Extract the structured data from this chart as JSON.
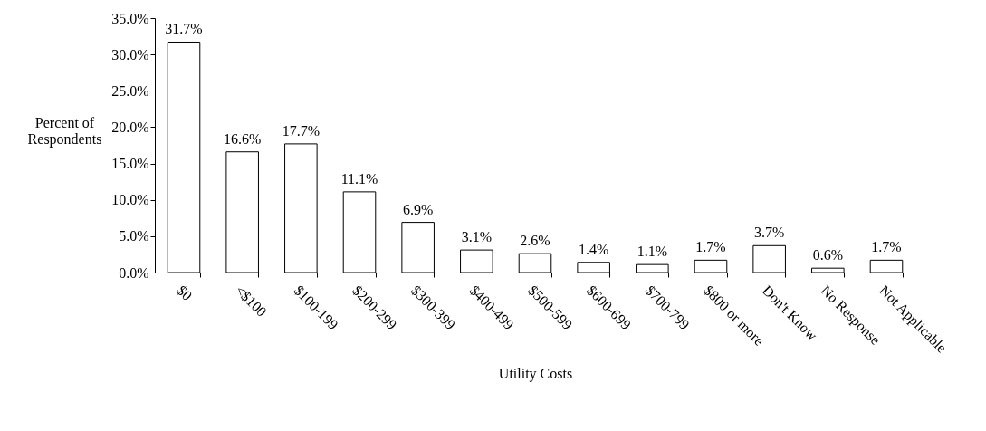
{
  "chart_data": {
    "type": "bar",
    "xlabel": "Utility Costs",
    "ylabel": "Percent of Respondents",
    "categories": [
      "$0",
      "<$100",
      "$100-199",
      "$200-299",
      "$300-399",
      "$400-499",
      "$500-599",
      "$600-699",
      "$700-799",
      "$800 or more",
      "Don't Know",
      "No Response",
      "Not Applicable"
    ],
    "values": [
      31.7,
      16.6,
      17.7,
      11.1,
      6.9,
      3.1,
      2.6,
      1.4,
      1.1,
      1.7,
      3.7,
      0.6,
      1.7
    ],
    "value_labels": [
      "31.7%",
      "16.6%",
      "17.7%",
      "11.1%",
      "6.9%",
      "3.1%",
      "2.6%",
      "1.4%",
      "1.1%",
      "1.7%",
      "3.7%",
      "0.6%",
      "1.7%"
    ],
    "color": "#ffffff",
    "ylim": [
      0,
      35
    ],
    "yticks": [
      {
        "value": 0,
        "label": "0.0%"
      },
      {
        "value": 5,
        "label": "5.0%"
      },
      {
        "value": 10,
        "label": "10.0%"
      },
      {
        "value": 15,
        "label": "15.0%"
      },
      {
        "value": 20,
        "label": "20.0%"
      },
      {
        "value": 25,
        "label": "25.0%"
      },
      {
        "value": 30,
        "label": "30.0%"
      },
      {
        "value": 35,
        "label": "35.0%"
      }
    ],
    "grid": false
  }
}
